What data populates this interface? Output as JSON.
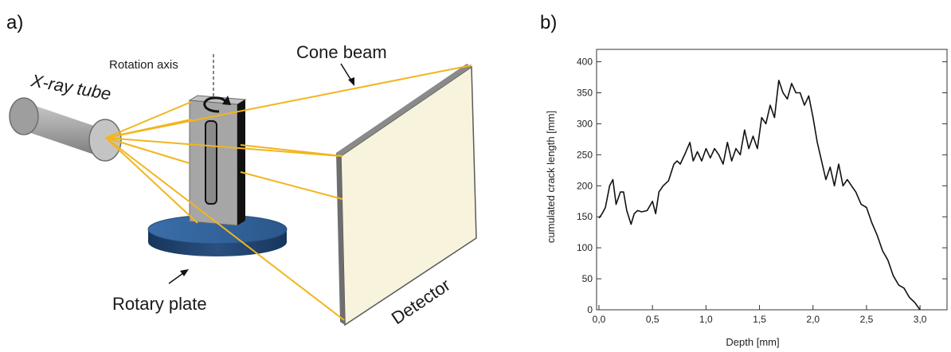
{
  "panel_a": {
    "label": "a)",
    "xray_tube": "X-ray tube",
    "rotation_axis": "Rotation axis",
    "cone_beam": "Cone beam",
    "rotary_plate": "Rotary plate",
    "detector": "Detector",
    "colors": {
      "beam": "#f2b51d",
      "tube": "#a6a6a6",
      "plate": "#2f5d91",
      "detector_face": "#f8f3dc",
      "detector_edge": "#6e6e6e"
    }
  },
  "panel_b": {
    "label": "b)"
  },
  "chart_data": {
    "type": "line",
    "xlabel": "Depth [mm]",
    "ylabel": "cumulated crack length [mm]",
    "xlim": [
      0,
      3.2
    ],
    "ylim": [
      0,
      420
    ],
    "x_ticks": [
      "0,0",
      "0,5",
      "1,0",
      "1,5",
      "2,0",
      "2,5",
      "3,0"
    ],
    "y_ticks": [
      "0",
      "50",
      "100",
      "150",
      "200",
      "250",
      "300",
      "350",
      "400"
    ],
    "grid": false,
    "series": [
      {
        "x": [
          0.0,
          0.03,
          0.06,
          0.1,
          0.13,
          0.16,
          0.2,
          0.23,
          0.26,
          0.3,
          0.33,
          0.36,
          0.4,
          0.45,
          0.5,
          0.53,
          0.56,
          0.6,
          0.65,
          0.7,
          0.73,
          0.76,
          0.8,
          0.85,
          0.88,
          0.92,
          0.96,
          1.0,
          1.04,
          1.08,
          1.12,
          1.16,
          1.2,
          1.24,
          1.28,
          1.32,
          1.36,
          1.4,
          1.44,
          1.48,
          1.52,
          1.56,
          1.6,
          1.64,
          1.68,
          1.72,
          1.76,
          1.8,
          1.84,
          1.88,
          1.92,
          1.96,
          2.0,
          2.04,
          2.08,
          2.12,
          2.16,
          2.2,
          2.24,
          2.28,
          2.32,
          2.36,
          2.4,
          2.45,
          2.5,
          2.55,
          2.6,
          2.65,
          2.7,
          2.75,
          2.8,
          2.85,
          2.9,
          2.95,
          3.0
        ],
        "y": [
          148,
          155,
          165,
          200,
          210,
          170,
          190,
          190,
          160,
          138,
          155,
          160,
          158,
          160,
          175,
          155,
          190,
          200,
          208,
          235,
          240,
          235,
          250,
          270,
          240,
          255,
          240,
          260,
          245,
          260,
          250,
          235,
          270,
          240,
          260,
          250,
          290,
          260,
          280,
          260,
          310,
          300,
          330,
          310,
          370,
          350,
          340,
          365,
          350,
          350,
          330,
          345,
          310,
          270,
          240,
          210,
          230,
          200,
          235,
          200,
          210,
          200,
          190,
          170,
          165,
          140,
          120,
          95,
          80,
          55,
          40,
          35,
          20,
          12,
          0
        ]
      }
    ]
  }
}
